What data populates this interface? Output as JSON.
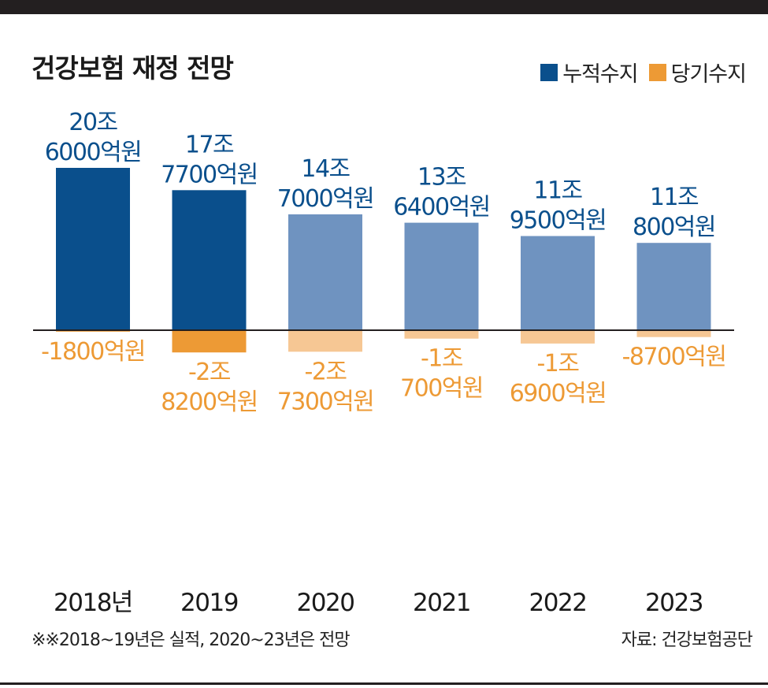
{
  "title": "건강보험 재정 전망",
  "legend": [
    {
      "label": "누적수지",
      "color": "#0a4f8c"
    },
    {
      "label": "당기수지",
      "color": "#ed9a35"
    }
  ],
  "footnote": "※※2018~19년은 실적, 2020~23년은 전망",
  "source": "자료: 건강보험공단",
  "colors": {
    "cumulative_actual": "#0a4f8c",
    "cumulative_forecast": "#6f93c0",
    "current_actual": "#ed9a35",
    "current_forecast": "#f6c794",
    "cumulative_text": "#0a4f8c",
    "current_text": "#ed9a35"
  },
  "chart_data": {
    "type": "bar",
    "categories": [
      "2018년",
      "2019",
      "2020",
      "2021",
      "2022",
      "2023"
    ],
    "unit": "억원",
    "series": [
      {
        "name": "누적수지",
        "values": [
          206000,
          177700,
          147000,
          136400,
          119500,
          110800
        ],
        "labels": [
          [
            "20조",
            "6000억원"
          ],
          [
            "17조",
            "7700억원"
          ],
          [
            "14조",
            "7000억원"
          ],
          [
            "13조",
            "6400억원"
          ],
          [
            "11조",
            "9500억원"
          ],
          [
            "11조",
            "800억원"
          ]
        ]
      },
      {
        "name": "당기수지",
        "values": [
          -1800,
          -28200,
          -27300,
          -10700,
          -16900,
          -8700
        ],
        "labels": [
          [
            "-1800억원"
          ],
          [
            "-2조",
            "8200억원"
          ],
          [
            "-2조",
            "7300억원"
          ],
          [
            "-1조",
            "700억원"
          ],
          [
            "-1조",
            "6900억원"
          ],
          [
            "-8700억원"
          ]
        ]
      }
    ],
    "forecast_from_index": 2
  }
}
